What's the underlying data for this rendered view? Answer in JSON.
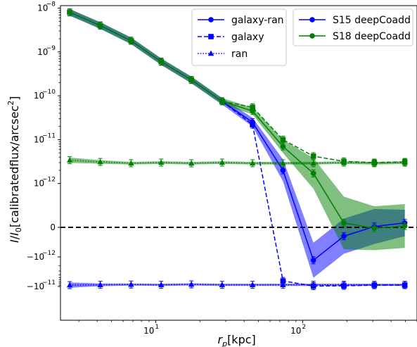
{
  "chart_data": {
    "type": "line",
    "xlabel": "r_p[kpc]",
    "ylabel": "I/I_0[calibratedflux/arcsec^2]",
    "x_scale": "log",
    "y_scale": "symlog",
    "x_ticks": [
      {
        "value": 10,
        "base": "10",
        "exp": "1"
      },
      {
        "value": 100,
        "base": "10",
        "exp": "2"
      }
    ],
    "y_ticks": [
      {
        "value": 1e-08,
        "label": "10",
        "exp": "−8"
      },
      {
        "value": 1e-09,
        "label": "10",
        "exp": "−9"
      },
      {
        "value": 1e-10,
        "label": "10",
        "exp": "−10"
      },
      {
        "value": 1e-11,
        "label": "10",
        "exp": "−11"
      },
      {
        "value": 1e-12,
        "label": "10",
        "exp": "−12"
      },
      {
        "value": 0,
        "label": "0",
        "exp": ""
      },
      {
        "value": -1e-12,
        "label": "−10",
        "exp": "−12"
      },
      {
        "value": -1e-11,
        "label": "−10",
        "exp": "−11"
      }
    ],
    "x": [
      2.6,
      4.2,
      6.8,
      10.9,
      17.5,
      28.3,
      45.6,
      73.5,
      118.4,
      190.8,
      307.5,
      495.6
    ],
    "series": [
      {
        "survey": "S15",
        "name": "galaxy-ran",
        "color": "#0000ff",
        "style": "solid",
        "marker": "circle",
        "values": [
          8e-09,
          4e-09,
          1.8e-09,
          6e-10,
          2.3e-10,
          7.5e-11,
          2.5e-11,
          2e-12,
          -1.3e-12,
          -3e-13,
          2e-14,
          1e-13
        ],
        "band": [
          0.15,
          0.15,
          0.15,
          0.15,
          0.15,
          0.15,
          0.2,
          0.5,
          0.8,
          0.8,
          0.8,
          0.6
        ]
      },
      {
        "survey": "S15",
        "name": "galaxy",
        "color": "#0000ff",
        "style": "dashed",
        "marker": "square",
        "values": [
          8e-09,
          4e-09,
          1.8e-09,
          6e-10,
          2.3e-10,
          7.5e-11,
          2.2e-11,
          -6.5e-12,
          -9.7e-12,
          -9.5e-12,
          -9e-12,
          -9e-12
        ]
      },
      {
        "survey": "S15",
        "name": "ran",
        "color": "#0000ff",
        "style": "dotted",
        "marker": "triangle",
        "values": [
          -9e-12,
          -8.8e-12,
          -8.6e-12,
          -8.8e-12,
          -8.5e-12,
          -8.8e-12,
          -8.8e-12,
          -8.8e-12,
          -8.8e-12,
          -8.8e-12,
          -8.8e-12,
          -8.8e-12
        ],
        "band": [
          0.12,
          0.06,
          0.05,
          0.05,
          0.05,
          0.05,
          0.05,
          0.05,
          0.05,
          0.05,
          0.05,
          0.05
        ]
      },
      {
        "survey": "S18",
        "name": "galaxy-ran",
        "color": "#008000",
        "style": "solid",
        "marker": "circle",
        "values": [
          8e-09,
          4e-09,
          1.8e-09,
          6e-10,
          2.3e-10,
          7.5e-11,
          4.5e-11,
          7e-12,
          1.7e-12,
          1e-13,
          -3e-14,
          3e-14
        ],
        "band": [
          0.15,
          0.15,
          0.15,
          0.15,
          0.15,
          0.15,
          0.15,
          0.3,
          0.7,
          1.2,
          1.0,
          1.0
        ]
      },
      {
        "survey": "S18",
        "name": "galaxy",
        "color": "#008000",
        "style": "dashed",
        "marker": "square",
        "values": [
          8e-09,
          4e-09,
          1.8e-09,
          6e-10,
          2.3e-10,
          7.5e-11,
          5.5e-11,
          1e-11,
          4.2e-12,
          3.2e-12,
          3e-12,
          3.1e-12
        ]
      },
      {
        "survey": "S18",
        "name": "ran",
        "color": "#008000",
        "style": "dotted",
        "marker": "triangle",
        "values": [
          3.4e-12,
          3.1e-12,
          2.9e-12,
          3e-12,
          2.9e-12,
          3e-12,
          2.9e-12,
          2.9e-12,
          2.9e-12,
          3e-12,
          2.9e-12,
          3e-12
        ],
        "band": [
          0.12,
          0.08,
          0.06,
          0.06,
          0.06,
          0.06,
          0.06,
          0.06,
          0.06,
          0.06,
          0.06,
          0.06
        ]
      }
    ],
    "legend_styles": {
      "title": "",
      "entries": [
        "galaxy-ran",
        "galaxy",
        "ran"
      ],
      "placement": "top-center"
    },
    "legend_surveys": {
      "entries": [
        "S15 deepCoadd",
        "S18 deepCoadd"
      ],
      "colors": [
        "#0000ff",
        "#008000"
      ],
      "placement": "top-right"
    },
    "zero_line": {
      "style": "dashed",
      "color": "#000000"
    }
  }
}
